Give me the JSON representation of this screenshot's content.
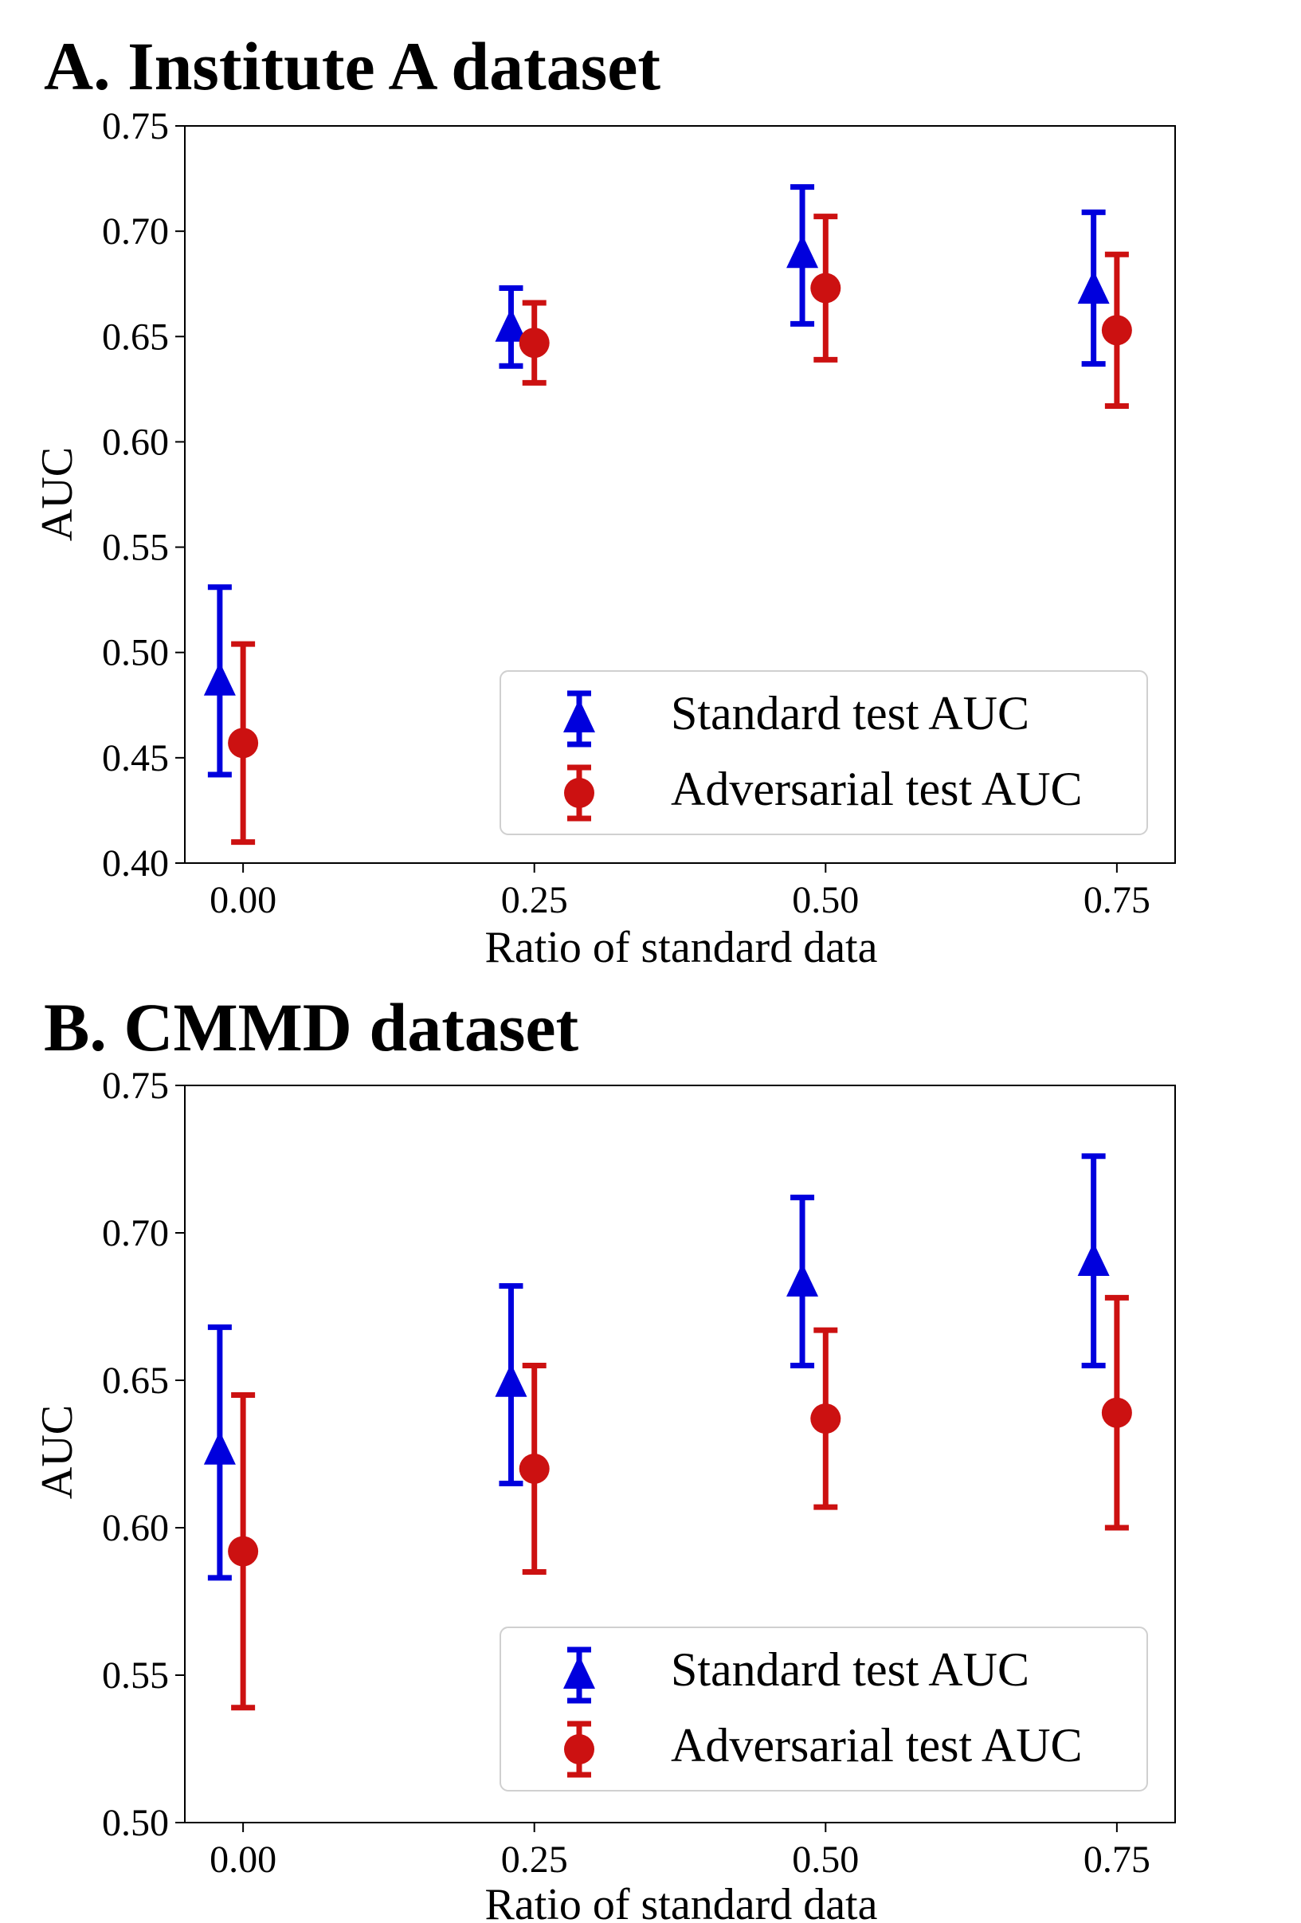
{
  "chart_data": [
    {
      "type": "scatter",
      "title": "A. Institute A dataset",
      "xlabel": "Ratio of standard data",
      "ylabel": "AUC",
      "x_ticks": [
        "0.00",
        "0.25",
        "0.50",
        "0.75"
      ],
      "y_ticks": [
        "0.40",
        "0.45",
        "0.50",
        "0.55",
        "0.60",
        "0.65",
        "0.70",
        "0.75"
      ],
      "xlim": [
        -0.05,
        0.8
      ],
      "ylim": [
        0.4,
        0.75
      ],
      "grid": false,
      "legend_position": "lower-right",
      "series": [
        {
          "name": "Standard test AUC",
          "marker": "triangle",
          "color": "#0000dd",
          "x": [
            -0.02,
            0.23,
            0.48,
            0.73
          ],
          "values": [
            0.486,
            0.654,
            0.689,
            0.672
          ],
          "err_low": [
            0.442,
            0.636,
            0.656,
            0.637
          ],
          "err_high": [
            0.531,
            0.673,
            0.721,
            0.709
          ]
        },
        {
          "name": "Adversarial test AUC",
          "marker": "circle",
          "color": "#cc1111",
          "x": [
            0.0,
            0.25,
            0.5,
            0.75
          ],
          "values": [
            0.457,
            0.647,
            0.673,
            0.653
          ],
          "err_low": [
            0.41,
            0.628,
            0.639,
            0.617
          ],
          "err_high": [
            0.504,
            0.666,
            0.707,
            0.689
          ]
        }
      ]
    },
    {
      "type": "scatter",
      "title": "B. CMMD dataset",
      "xlabel": "Ratio of standard data",
      "ylabel": "AUC",
      "x_ticks": [
        "0.00",
        "0.25",
        "0.50",
        "0.75"
      ],
      "y_ticks": [
        "0.50",
        "0.55",
        "0.60",
        "0.65",
        "0.70",
        "0.75"
      ],
      "xlim": [
        -0.05,
        0.8
      ],
      "ylim": [
        0.5,
        0.75
      ],
      "grid": false,
      "legend_position": "lower-right",
      "series": [
        {
          "name": "Standard test AUC",
          "marker": "triangle",
          "color": "#0000dd",
          "x": [
            -0.02,
            0.23,
            0.48,
            0.73
          ],
          "values": [
            0.626,
            0.649,
            0.683,
            0.69
          ],
          "err_low": [
            0.583,
            0.615,
            0.655,
            0.655
          ],
          "err_high": [
            0.668,
            0.682,
            0.712,
            0.726
          ]
        },
        {
          "name": "Adversarial test AUC",
          "marker": "circle",
          "color": "#cc1111",
          "x": [
            0.0,
            0.25,
            0.5,
            0.75
          ],
          "values": [
            0.592,
            0.62,
            0.637,
            0.639
          ],
          "err_low": [
            0.539,
            0.585,
            0.607,
            0.6
          ],
          "err_high": [
            0.645,
            0.655,
            0.667,
            0.678
          ]
        }
      ]
    }
  ]
}
